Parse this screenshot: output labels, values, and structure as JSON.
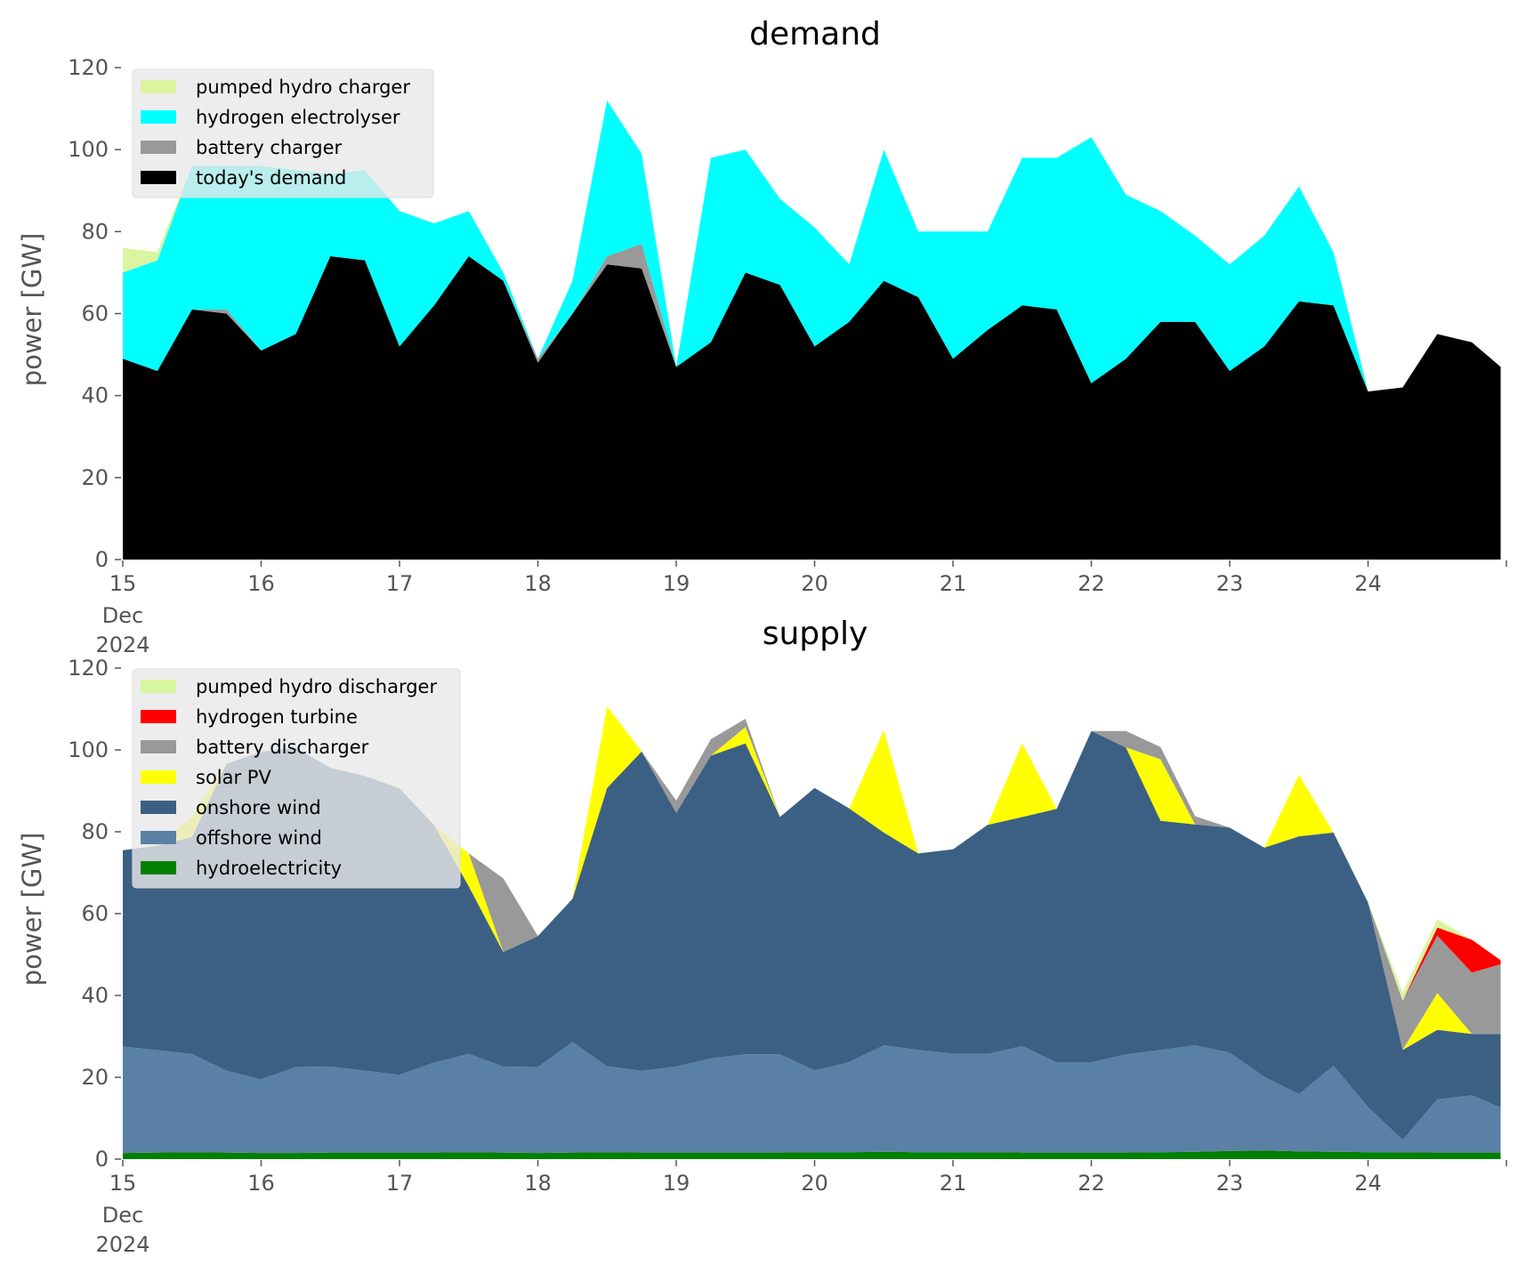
{
  "chart_data": [
    {
      "type": "area",
      "stacked": true,
      "title": "demand",
      "xlabel": "",
      "ylabel": "power [GW]",
      "xlim": [
        "2024-12-15",
        "2024-12-25"
      ],
      "ylim": [
        0,
        120
      ],
      "yticks": [
        "0",
        "20",
        "40",
        "60",
        "80",
        "100",
        "120"
      ],
      "xticks": [
        "15",
        "16",
        "17",
        "18",
        "19",
        "20",
        "21",
        "22",
        "23",
        "24"
      ],
      "xtick_sub": [
        "Dec",
        "2024"
      ],
      "grid": false,
      "legend_position": "top-left",
      "x": [
        "2024-12-15 00:00",
        "2024-12-15 06:00",
        "2024-12-15 12:00",
        "2024-12-15 18:00",
        "2024-12-16 00:00",
        "2024-12-16 06:00",
        "2024-12-16 12:00",
        "2024-12-16 18:00",
        "2024-12-17 00:00",
        "2024-12-17 06:00",
        "2024-12-17 12:00",
        "2024-12-17 18:00",
        "2024-12-18 00:00",
        "2024-12-18 06:00",
        "2024-12-18 12:00",
        "2024-12-18 18:00",
        "2024-12-19 00:00",
        "2024-12-19 06:00",
        "2024-12-19 12:00",
        "2024-12-19 18:00",
        "2024-12-20 00:00",
        "2024-12-20 06:00",
        "2024-12-20 12:00",
        "2024-12-20 18:00",
        "2024-12-21 00:00",
        "2024-12-21 06:00",
        "2024-12-21 12:00",
        "2024-12-21 18:00",
        "2024-12-22 00:00",
        "2024-12-22 06:00",
        "2024-12-22 12:00",
        "2024-12-22 18:00",
        "2024-12-23 00:00",
        "2024-12-23 06:00",
        "2024-12-23 12:00",
        "2024-12-23 18:00",
        "2024-12-24 00:00",
        "2024-12-24 06:00",
        "2024-12-24 12:00",
        "2024-12-24 18:00",
        "2024-12-24 23:00"
      ],
      "series": [
        {
          "name": "today's demand",
          "color": "#000000",
          "values": [
            49,
            46,
            61,
            60,
            51,
            55,
            74,
            73,
            52,
            62,
            74,
            68,
            48,
            60,
            72,
            71,
            47,
            53,
            70,
            67,
            52,
            58,
            68,
            64,
            49,
            56,
            62,
            61,
            43,
            49,
            58,
            58,
            46,
            52,
            63,
            62,
            41,
            42,
            55,
            53,
            47
          ]
        },
        {
          "name": "battery charger",
          "color": "#999999",
          "values": [
            0,
            0,
            0,
            1,
            0,
            0,
            0,
            0,
            0,
            0,
            0,
            0,
            1,
            0,
            2,
            6,
            0,
            0,
            0,
            0,
            0,
            0,
            0,
            0,
            0,
            0,
            0,
            0,
            0,
            0,
            0,
            0,
            0,
            0,
            0,
            0,
            0,
            0,
            0,
            0,
            0
          ]
        },
        {
          "name": "hydrogen electrolyser",
          "color": "#00ffff",
          "values": [
            21,
            27,
            35,
            35,
            45,
            40,
            20,
            22,
            33,
            20,
            11,
            2,
            0,
            8,
            38,
            22,
            0,
            45,
            30,
            21,
            29,
            14,
            32,
            16,
            31,
            24,
            36,
            37,
            60,
            40,
            27,
            21,
            26,
            27,
            28,
            13,
            0,
            0,
            0,
            0,
            0
          ]
        },
        {
          "name": "pumped hydro charger",
          "color": "#daf5a0",
          "values": [
            6,
            2,
            0,
            0,
            0,
            0,
            0,
            0,
            0,
            0,
            0,
            0,
            0,
            0,
            0,
            0,
            0,
            0,
            0,
            0,
            0,
            0,
            0,
            0,
            0,
            0,
            0,
            0,
            0,
            0,
            0,
            0,
            0,
            0,
            0,
            0,
            0,
            0,
            0,
            0,
            0
          ]
        }
      ]
    },
    {
      "type": "area",
      "stacked": true,
      "title": "supply",
      "xlabel": "",
      "ylabel": "power [GW]",
      "xlim": [
        "2024-12-15",
        "2024-12-25"
      ],
      "ylim": [
        0,
        120
      ],
      "yticks": [
        "0",
        "20",
        "40",
        "60",
        "80",
        "100",
        "120"
      ],
      "xticks": [
        "15",
        "16",
        "17",
        "18",
        "19",
        "20",
        "21",
        "22",
        "23",
        "24"
      ],
      "xtick_sub": [
        "Dec",
        "2024"
      ],
      "grid": false,
      "legend_position": "top-left",
      "x": [
        "2024-12-15 00:00",
        "2024-12-15 06:00",
        "2024-12-15 12:00",
        "2024-12-15 18:00",
        "2024-12-16 00:00",
        "2024-12-16 06:00",
        "2024-12-16 12:00",
        "2024-12-16 18:00",
        "2024-12-17 00:00",
        "2024-12-17 06:00",
        "2024-12-17 12:00",
        "2024-12-17 18:00",
        "2024-12-18 00:00",
        "2024-12-18 06:00",
        "2024-12-18 12:00",
        "2024-12-18 18:00",
        "2024-12-19 00:00",
        "2024-12-19 06:00",
        "2024-12-19 12:00",
        "2024-12-19 18:00",
        "2024-12-20 00:00",
        "2024-12-20 06:00",
        "2024-12-20 12:00",
        "2024-12-20 18:00",
        "2024-12-21 00:00",
        "2024-12-21 06:00",
        "2024-12-21 12:00",
        "2024-12-21 18:00",
        "2024-12-22 00:00",
        "2024-12-22 06:00",
        "2024-12-22 12:00",
        "2024-12-22 18:00",
        "2024-12-23 00:00",
        "2024-12-23 06:00",
        "2024-12-23 12:00",
        "2024-12-23 18:00",
        "2024-12-24 00:00",
        "2024-12-24 06:00",
        "2024-12-24 12:00",
        "2024-12-24 18:00",
        "2024-12-24 23:00"
      ],
      "series": [
        {
          "name": "hydroelectricity",
          "color": "#008000",
          "values": [
            1.5,
            1.6,
            1.7,
            1.6,
            1.5,
            1.5,
            1.6,
            1.6,
            1.6,
            1.6,
            1.7,
            1.6,
            1.5,
            1.6,
            1.7,
            1.6,
            1.6,
            1.6,
            1.6,
            1.6,
            1.7,
            1.7,
            1.8,
            1.7,
            1.7,
            1.7,
            1.6,
            1.6,
            1.6,
            1.6,
            1.7,
            1.8,
            2.0,
            2.1,
            1.9,
            1.8,
            1.7,
            1.7,
            1.6,
            1.6,
            1.6
          ]
        },
        {
          "name": "offshore wind",
          "color": "#5b80a5",
          "values": [
            26,
            25,
            24,
            20,
            18,
            21,
            21,
            20,
            19,
            22,
            24,
            21,
            21,
            27,
            21,
            20,
            21,
            23,
            24,
            24,
            20,
            22,
            26,
            25,
            24,
            24,
            26,
            22,
            22,
            24,
            25,
            26,
            24,
            18,
            14,
            21,
            11,
            3,
            13,
            14,
            11
          ]
        },
        {
          "name": "onshore wind",
          "color": "#3c6083",
          "values": [
            48,
            50,
            53,
            75,
            80,
            78,
            73,
            72,
            70,
            58,
            41,
            28,
            32,
            35,
            68,
            78,
            62,
            74,
            76,
            58,
            69,
            62,
            52,
            48,
            50,
            56,
            56,
            62,
            81,
            75,
            56,
            54,
            55,
            56,
            63,
            57,
            50,
            22,
            17,
            15,
            18
          ]
        },
        {
          "name": "solar PV",
          "color": "#ffff00",
          "values": [
            0,
            0,
            5,
            0,
            0,
            0,
            0,
            0,
            0,
            0,
            8,
            0,
            0,
            0,
            20,
            0,
            0,
            0,
            4,
            0,
            0,
            0,
            25,
            0,
            0,
            0,
            18,
            0,
            0,
            0,
            15,
            0,
            0,
            0,
            15,
            0,
            0,
            0,
            9,
            0,
            0
          ]
        },
        {
          "name": "battery discharger",
          "color": "#999999",
          "values": [
            0,
            0,
            0,
            0,
            0,
            0,
            0,
            0,
            0,
            0,
            0,
            18,
            0,
            0,
            0,
            0,
            3,
            4,
            2,
            0,
            0,
            0,
            0,
            0,
            0,
            0,
            0,
            0,
            0,
            4,
            3,
            2,
            0,
            0,
            0,
            0,
            0,
            12,
            14,
            15,
            17
          ]
        },
        {
          "name": "hydrogen turbine",
          "color": "#ff0000",
          "values": [
            0,
            0,
            0,
            0,
            0,
            0,
            0,
            0,
            0,
            0,
            0,
            0,
            0,
            0,
            0,
            0,
            0,
            0,
            0,
            0,
            0,
            0,
            0,
            0,
            0,
            0,
            0,
            0,
            0,
            0,
            0,
            0,
            0,
            0,
            0,
            0,
            0,
            0,
            2,
            8,
            1
          ]
        },
        {
          "name": "pumped hydro discharger",
          "color": "#daf5a0",
          "values": [
            0,
            0,
            0,
            0,
            0,
            0,
            0,
            0,
            0,
            0,
            0,
            0,
            0,
            0,
            0,
            0,
            0,
            0,
            0,
            0,
            0,
            0,
            0,
            0,
            0,
            0,
            0,
            0,
            0,
            0,
            0,
            0,
            0,
            0,
            0,
            0,
            0,
            2,
            2,
            0,
            0
          ]
        }
      ],
      "legend_order": [
        "pumped hydro discharger",
        "hydrogen turbine",
        "battery discharger",
        "solar PV",
        "onshore wind",
        "offshore wind",
        "hydroelectricity"
      ]
    }
  ]
}
